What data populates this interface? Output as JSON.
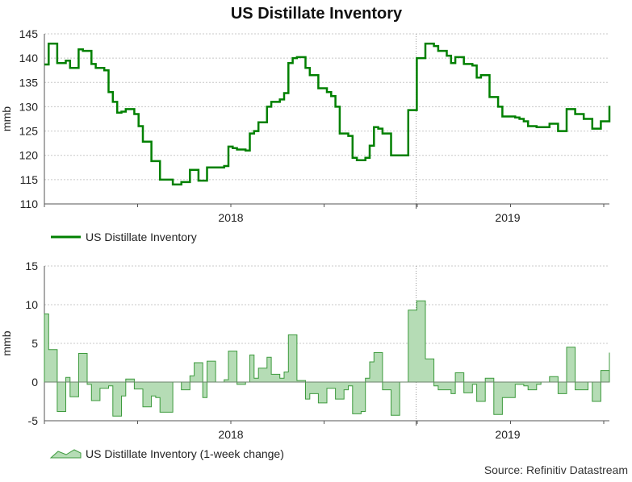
{
  "title": "US Distillate Inventory",
  "source": "Source: Refinitiv Datastream",
  "colors": {
    "line": "#008000",
    "area_fill": "#b5dcb5",
    "area_stroke": "#3d9a3d",
    "grid": "#c8c8c8",
    "axis": "#555555",
    "text": "#222222"
  },
  "chart_data": [
    {
      "type": "line",
      "name": "inventory",
      "ylabel": "mmb",
      "ylim": [
        110,
        145
      ],
      "yticks": [
        "110",
        "115",
        "120",
        "125",
        "130",
        "135",
        "140",
        "145"
      ],
      "xticks": [
        {
          "label": "2018",
          "pos": 0.33
        },
        {
          "label": "2019",
          "pos": 0.82
        }
      ],
      "year_divider": 0.658,
      "legend": "US Distillate Inventory",
      "series": [
        {
          "name": "US Distillate Inventory",
          "values": [
            138.7,
            143.0,
            143.0,
            139.0,
            139.0,
            139.5,
            138.0,
            138.0,
            141.8,
            141.5,
            141.5,
            138.8,
            138.0,
            138.0,
            137.5,
            133.0,
            131.0,
            128.8,
            129.0,
            129.5,
            129.5,
            128.5,
            126.0,
            122.8,
            122.8,
            118.8,
            118.8,
            115.0,
            115.0,
            115.0,
            114.0,
            114.0,
            114.5,
            114.5,
            117.0,
            117.0,
            114.8,
            114.8,
            117.5,
            117.5,
            117.5,
            117.5,
            117.8,
            121.8,
            121.5,
            121.2,
            121.2,
            121.0,
            124.5,
            125.0,
            126.8,
            126.8,
            130.0,
            131.0,
            131.0,
            131.5,
            132.8,
            139.0,
            140.0,
            140.2,
            140.2,
            138.0,
            136.5,
            136.5,
            133.8,
            133.8,
            133.0,
            132.2,
            130.0,
            124.5,
            124.5,
            124.0,
            119.5,
            119.0,
            119.0,
            119.5,
            122.0,
            125.8,
            125.5,
            124.5,
            124.5,
            120.0,
            120.0,
            120.0,
            120.0,
            129.3,
            129.3,
            140.0,
            140.0,
            143.0,
            143.0,
            142.5,
            141.5,
            141.5,
            140.5,
            139.0,
            140.2,
            140.2,
            138.8,
            138.8,
            138.5,
            136.0,
            136.5,
            136.5,
            132.0,
            132.0,
            130.0,
            128.0,
            128.0,
            128.0,
            127.8,
            127.5,
            127.0,
            126.0,
            126.0,
            125.8,
            125.8,
            125.8,
            126.5,
            126.5,
            125.0,
            125.0,
            129.5,
            129.5,
            128.5,
            128.5,
            127.5,
            127.5,
            125.5,
            125.5,
            127.0,
            127.0,
            130.2
          ]
        }
      ]
    },
    {
      "type": "area",
      "name": "weekly_change",
      "ylabel": "mmb",
      "ylim": [
        -5,
        15
      ],
      "yticks": [
        "-5",
        "0",
        "5",
        "10",
        "15"
      ],
      "xticks": [
        {
          "label": "2018",
          "pos": 0.33
        },
        {
          "label": "2019",
          "pos": 0.82
        }
      ],
      "year_divider": 0.658,
      "legend": "US Distillate Inventory (1-week change)",
      "series": [
        {
          "name": "US Distillate Inventory (1-week change)",
          "values": [
            8.8,
            4.2,
            4.2,
            -3.8,
            -3.8,
            0.6,
            -1.9,
            -1.9,
            3.7,
            3.7,
            -0.3,
            -2.4,
            -2.4,
            -0.8,
            -0.8,
            -0.5,
            -4.4,
            -4.4,
            -1.8,
            0.4,
            0.4,
            -0.9,
            -0.9,
            -3.2,
            -3.2,
            -1.8,
            -2.0,
            -3.9,
            -3.9,
            -3.9,
            0.0,
            0.0,
            -1.0,
            -1.0,
            0.8,
            2.5,
            2.5,
            -2.0,
            2.7,
            2.7,
            0.0,
            0.0,
            0.3,
            4.0,
            4.0,
            -0.3,
            -0.3,
            0.0,
            3.5,
            0.5,
            1.8,
            1.8,
            3.2,
            1.0,
            1.0,
            0.5,
            1.3,
            6.1,
            6.1,
            0.2,
            0.2,
            -2.2,
            -1.5,
            -1.5,
            -2.7,
            -2.7,
            -0.8,
            -0.8,
            -2.2,
            -2.2,
            -1.0,
            -0.5,
            -4.1,
            -4.1,
            -3.8,
            0.5,
            2.6,
            3.8,
            3.8,
            -1.0,
            -1.0,
            -4.3,
            -4.3,
            0.0,
            0.0,
            9.3,
            9.3,
            10.5,
            10.5,
            3.0,
            3.0,
            -0.5,
            -1.0,
            -1.0,
            -1.0,
            -1.5,
            1.2,
            1.2,
            -1.4,
            -1.4,
            -0.3,
            -2.5,
            -2.5,
            0.5,
            0.5,
            -4.2,
            -4.2,
            -2.0,
            -2.0,
            -2.0,
            -0.3,
            -0.3,
            -0.5,
            -1.0,
            -1.0,
            -0.3,
            0.0,
            0.0,
            0.7,
            0.7,
            -1.5,
            -1.5,
            4.5,
            4.5,
            -1.0,
            -1.0,
            -1.0,
            0.0,
            -2.5,
            -2.5,
            1.5,
            1.5,
            3.8
          ]
        }
      ]
    }
  ]
}
